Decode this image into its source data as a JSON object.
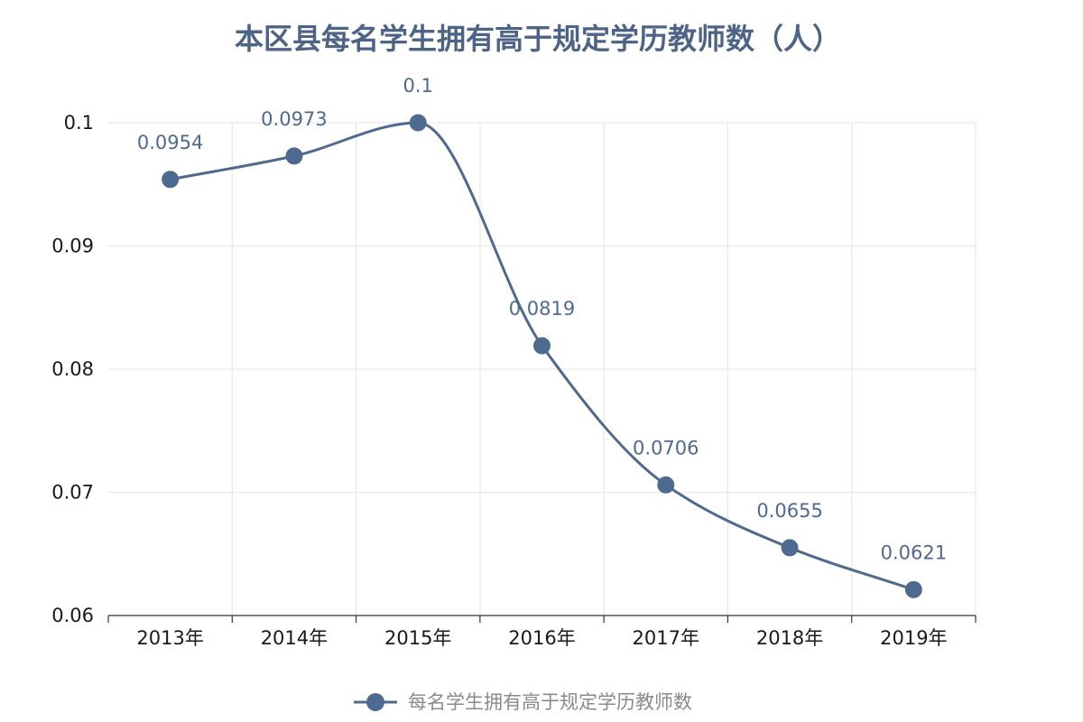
{
  "chart_data": {
    "type": "line",
    "title": "本区县每名学生拥有高于规定学历教师数（人）",
    "categories": [
      "2013年",
      "2014年",
      "2015年",
      "2016年",
      "2017年",
      "2018年",
      "2019年"
    ],
    "series": [
      {
        "name": "每名学生拥有高于规定学历教师数",
        "values": [
          0.0954,
          0.0973,
          0.1,
          0.0819,
          0.0706,
          0.0655,
          0.0621
        ],
        "labels": [
          "0.0954",
          "0.0973",
          "0.1",
          "0.0819",
          "0.0706",
          "0.0655",
          "0.0621"
        ]
      }
    ],
    "ylim": [
      0.06,
      0.1
    ],
    "yticks": [
      0.06,
      0.07,
      0.08,
      0.09,
      0.1
    ],
    "ytick_labels": [
      "0.06",
      "0.07",
      "0.08",
      "0.09",
      "0.1"
    ],
    "grid": true,
    "smooth": true,
    "legend_position": "bottom",
    "colors": {
      "series": "#4f6a8f",
      "title": "#4d6486"
    }
  }
}
